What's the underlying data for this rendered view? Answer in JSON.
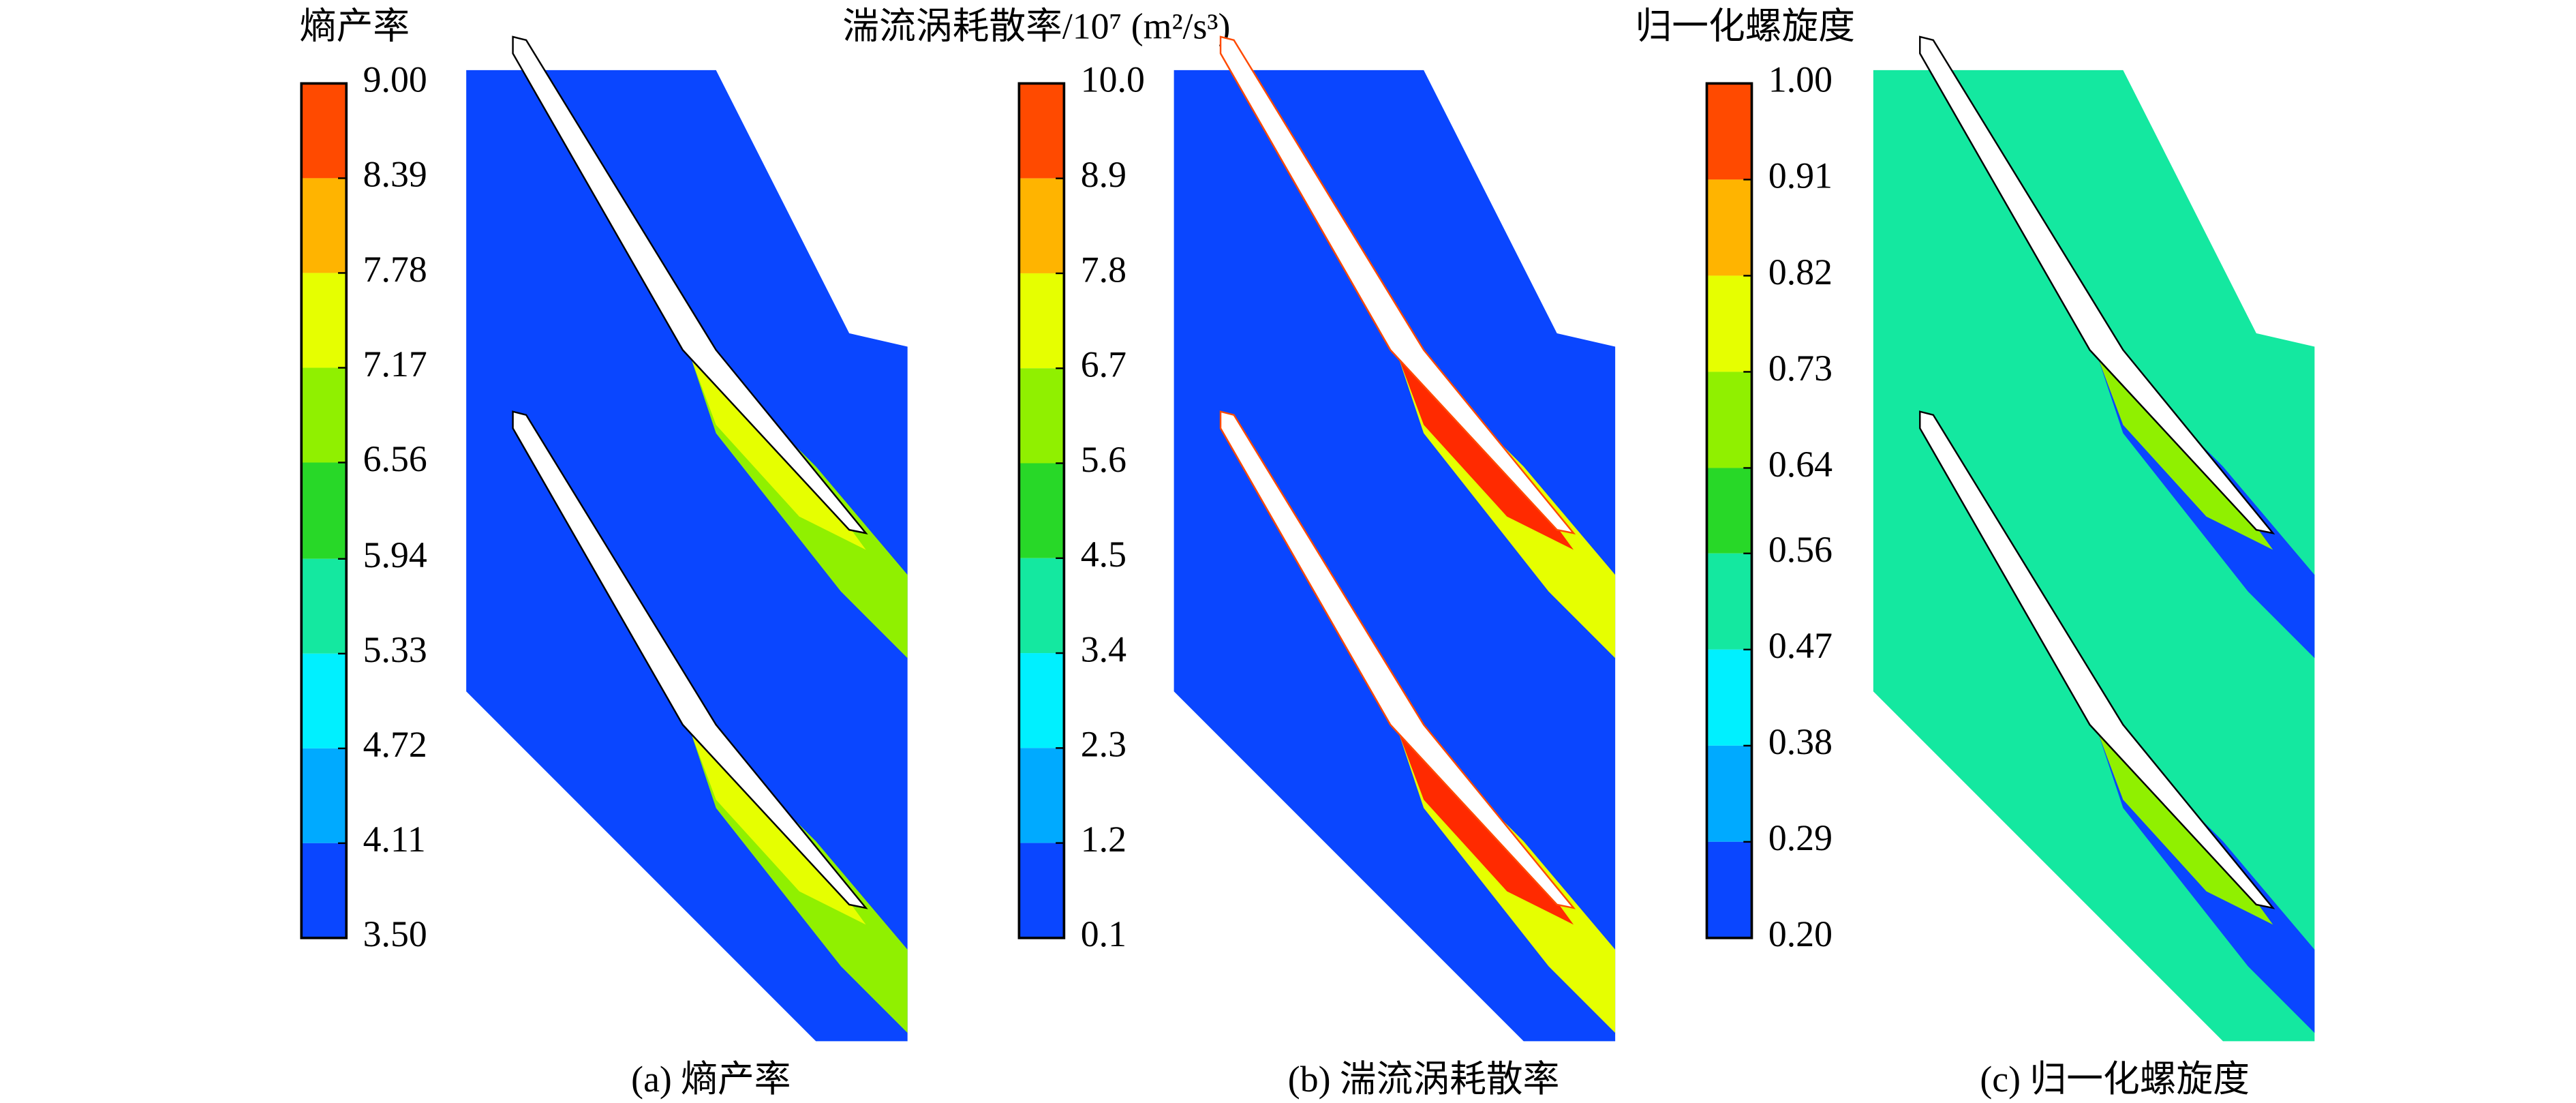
{
  "colormap": [
    "#0a46ff",
    "#00aaff",
    "#00f0ff",
    "#14e8a0",
    "#28d828",
    "#90f000",
    "#e6ff00",
    "#ffb400",
    "#ff4a00"
  ],
  "panels": [
    {
      "title": "熵产率",
      "caption": "(a) 熵产率",
      "ticks": [
        {
          "value": 9,
          "label": "9.00"
        },
        8.39,
        7.78,
        7.17,
        6.56,
        5.94,
        5.33,
        4.72,
        4.11,
        {
          "value": 3.5,
          "label": "3.50"
        }
      ]
    },
    {
      "title": "湍流涡耗散率/10⁷ (m²/s³)",
      "caption": "(b) 湍流涡耗散率",
      "ticks": [
        {
          "value": 10,
          "label": "10.0"
        },
        8.9,
        7.8,
        6.7,
        5.6,
        4.5,
        3.4,
        2.3,
        1.2,
        0.1
      ]
    },
    {
      "title": "归一化螺旋度",
      "caption": "(c) 归一化螺旋度",
      "ticks": [
        {
          "value": 1,
          "label": "1.00"
        },
        0.91,
        0.82,
        0.73,
        0.64,
        0.56,
        0.47,
        0.38,
        0.29,
        {
          "value": 0.2,
          "label": "0.20"
        }
      ]
    }
  ]
}
